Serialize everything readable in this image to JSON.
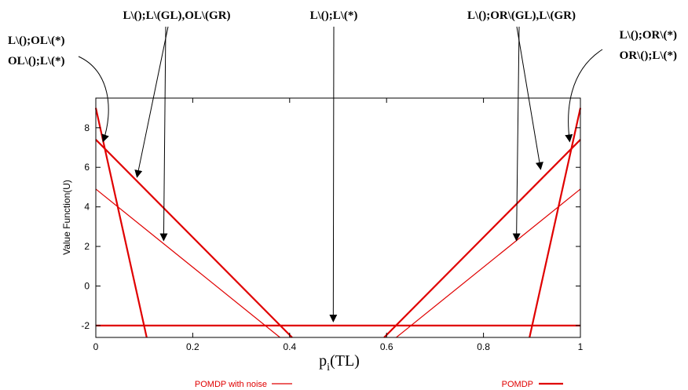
{
  "chart_data": {
    "type": "line",
    "xlabel": "p",
    "xlabel_sub": "i",
    "xlabel_tail": "(TL)",
    "ylabel": "Value Function(U)",
    "xlim": [
      0,
      1
    ],
    "ylim": [
      -2.6,
      9.5
    ],
    "x_ticks": [
      0,
      0.2,
      0.4,
      0.6,
      0.8,
      1
    ],
    "x_tick_labels": [
      "0",
      "0.2",
      "0.4",
      "0.6",
      "0.8",
      "1"
    ],
    "y_ticks": [
      -2,
      0,
      2,
      4,
      6,
      8
    ],
    "y_tick_labels": [
      "-2",
      "0",
      "2",
      "4",
      "6",
      "8"
    ],
    "grid": false,
    "line_color": "#e00000",
    "series": [
      {
        "name": "POMDP with noise",
        "style": "thin",
        "lines": [
          {
            "x": [
              0,
              0.38
            ],
            "y": [
              4.9,
              -2.6
            ]
          },
          {
            "x": [
              0.62,
              1
            ],
            "y": [
              -2.6,
              4.9
            ]
          },
          {
            "x": [
              0,
              1
            ],
            "y": [
              -2,
              -2
            ]
          }
        ]
      },
      {
        "name": "POMDP",
        "style": "thick",
        "lines": [
          {
            "x": [
              0,
              0.105
            ],
            "y": [
              9.0,
              -2.6
            ]
          },
          {
            "x": [
              0.895,
              1
            ],
            "y": [
              -2.6,
              9.0
            ]
          },
          {
            "x": [
              0,
              0.405
            ],
            "y": [
              7.4,
              -2.6
            ]
          },
          {
            "x": [
              0.595,
              1
            ],
            "y": [
              -2.6,
              7.4
            ]
          },
          {
            "x": [
              0,
              1
            ],
            "y": [
              -2,
              -2
            ]
          }
        ]
      }
    ],
    "annotations": [
      {
        "lines": [
          "L\\();OL\\(*)",
          "OL\\();L\\(*)"
        ],
        "align": "left",
        "arrows": [
          {
            "from_x": 0.02,
            "from_y": 0.49,
            "to_x": 0.015,
            "to_y": 7.3,
            "curved": true
          }
        ]
      },
      {
        "lines": [
          "L\\();L\\(GL),OL\\(GR)"
        ],
        "align": "center",
        "arrows": [
          {
            "to_x": 0.085,
            "to_y": 5.5
          },
          {
            "to_x": 0.14,
            "to_y": 2.3
          }
        ]
      },
      {
        "lines": [
          "L\\();L\\(*)"
        ],
        "align": "center",
        "arrows": [
          {
            "to_x": 0.49,
            "to_y": -1.8
          }
        ]
      },
      {
        "lines": [
          "L\\();OR\\(GL),L\\(GR)"
        ],
        "align": "center",
        "arrows": [
          {
            "to_x": 0.918,
            "to_y": 5.9
          },
          {
            "to_x": 0.868,
            "to_y": 2.3
          }
        ]
      },
      {
        "lines": [
          "L\\();OR\\(*)",
          "OR\\();L\\(*)"
        ],
        "align": "right",
        "arrows": [
          {
            "to_x": 0.978,
            "to_y": 7.3,
            "curved": true
          }
        ]
      }
    ]
  }
}
